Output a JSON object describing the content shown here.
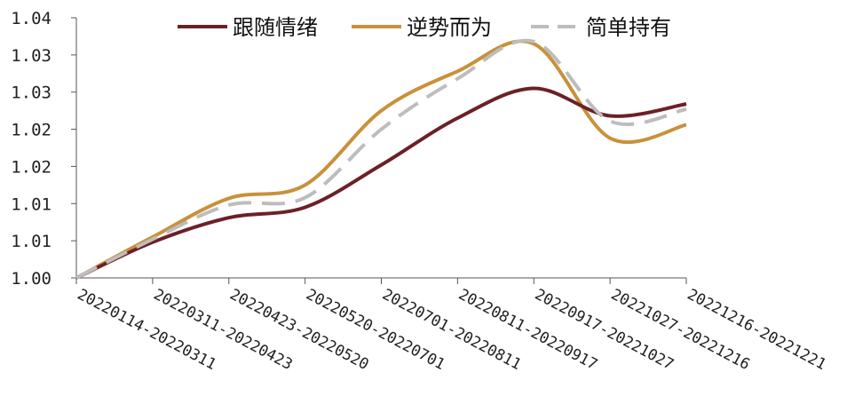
{
  "chart_data": {
    "type": "line",
    "title": "",
    "xlabel": "",
    "ylabel": "",
    "categories": [
      "20220114-20220311",
      "20220311-20220423",
      "20220423-20220520",
      "20220520-20220701",
      "20220701-20220811",
      "20220811-20220917",
      "20220917-20221027",
      "20221027-20221216",
      "20221216-20221221"
    ],
    "ylim": [
      1.0,
      1.035
    ],
    "yticks": [
      1.0,
      1.005,
      1.01,
      1.015,
      1.02,
      1.025,
      1.03,
      1.035
    ],
    "ytick_labels": [
      "1.00",
      "1.01",
      "1.01",
      "1.02",
      "1.02",
      "1.03",
      "1.03",
      "1.04"
    ],
    "grid": false,
    "legend_position": "top",
    "series": [
      {
        "name": "跟随情绪",
        "color": "#6B2127",
        "dash": "solid",
        "values": [
          1.0,
          1.0048,
          1.0081,
          1.0095,
          1.0152,
          1.0215,
          1.0255,
          1.0218,
          1.0234
        ]
      },
      {
        "name": "逆势而为",
        "color": "#C9913A",
        "dash": "solid",
        "values": [
          1.0,
          1.0055,
          1.0107,
          1.0125,
          1.0225,
          1.0278,
          1.0315,
          1.0188,
          1.0206
        ]
      },
      {
        "name": "简单持有",
        "color": "#BDBDBD",
        "dash": "dashed",
        "values": [
          1.0,
          1.0052,
          1.0098,
          1.0108,
          1.02,
          1.0268,
          1.0318,
          1.0211,
          1.0227
        ]
      }
    ]
  }
}
